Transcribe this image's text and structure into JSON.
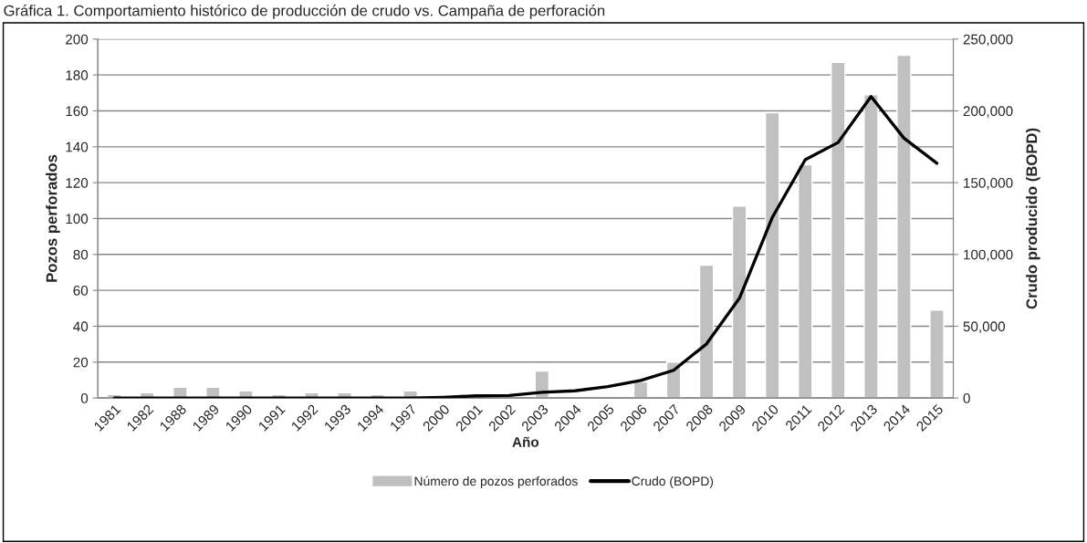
{
  "chart_data": {
    "type": "bar",
    "title": "Gráfica 1. Comportamiento histórico de producción de crudo vs. Campaña de perforación",
    "xlabel": "Año",
    "ylabel": "Pozos perforados",
    "y2label": "Crudo producido (BOPD)",
    "categories": [
      "1981",
      "1982",
      "1988",
      "1989",
      "1990",
      "1991",
      "1992",
      "1993",
      "1994",
      "1997",
      "2000",
      "2001",
      "2002",
      "2003",
      "2004",
      "2005",
      "2006",
      "2007",
      "2008",
      "2009",
      "2010",
      "2011",
      "2012",
      "2013",
      "2014",
      "2015"
    ],
    "series": [
      {
        "name": "Número de pozos perforados",
        "color": "#c0c0c0",
        "values": [
          2,
          3,
          6,
          6,
          4,
          2,
          3,
          3,
          2,
          4,
          null,
          null,
          null,
          15,
          null,
          null,
          9,
          20,
          74,
          107,
          159,
          130,
          187,
          169,
          191,
          49
        ]
      },
      {
        "name": "Crudo (BOPD)",
        "type": "line",
        "axis": "y2",
        "color": "#000000",
        "values": [
          0,
          0,
          0,
          0,
          0,
          0,
          0,
          0,
          0,
          0,
          500,
          1500,
          1800,
          4000,
          5000,
          8000,
          12300,
          19300,
          37700,
          69500,
          125800,
          166000,
          178000,
          210000,
          181000,
          163500
        ]
      }
    ],
    "ylim": [
      0,
      200
    ],
    "yticks": [
      0,
      20,
      40,
      60,
      80,
      100,
      120,
      140,
      160,
      180,
      200
    ],
    "y2lim": [
      0,
      250000
    ],
    "y2ticks": [
      {
        "value": 0,
        "label": "0"
      },
      {
        "value": 50000,
        "label": "50,000"
      },
      {
        "value": 100000,
        "label": "100,000"
      },
      {
        "value": 150000,
        "label": "150,000"
      },
      {
        "value": 200000,
        "label": "200,000"
      },
      {
        "value": 250000,
        "label": "250,000"
      }
    ],
    "grid": "y",
    "legend": "bottom",
    "marker": "none",
    "line_style": "solid"
  }
}
